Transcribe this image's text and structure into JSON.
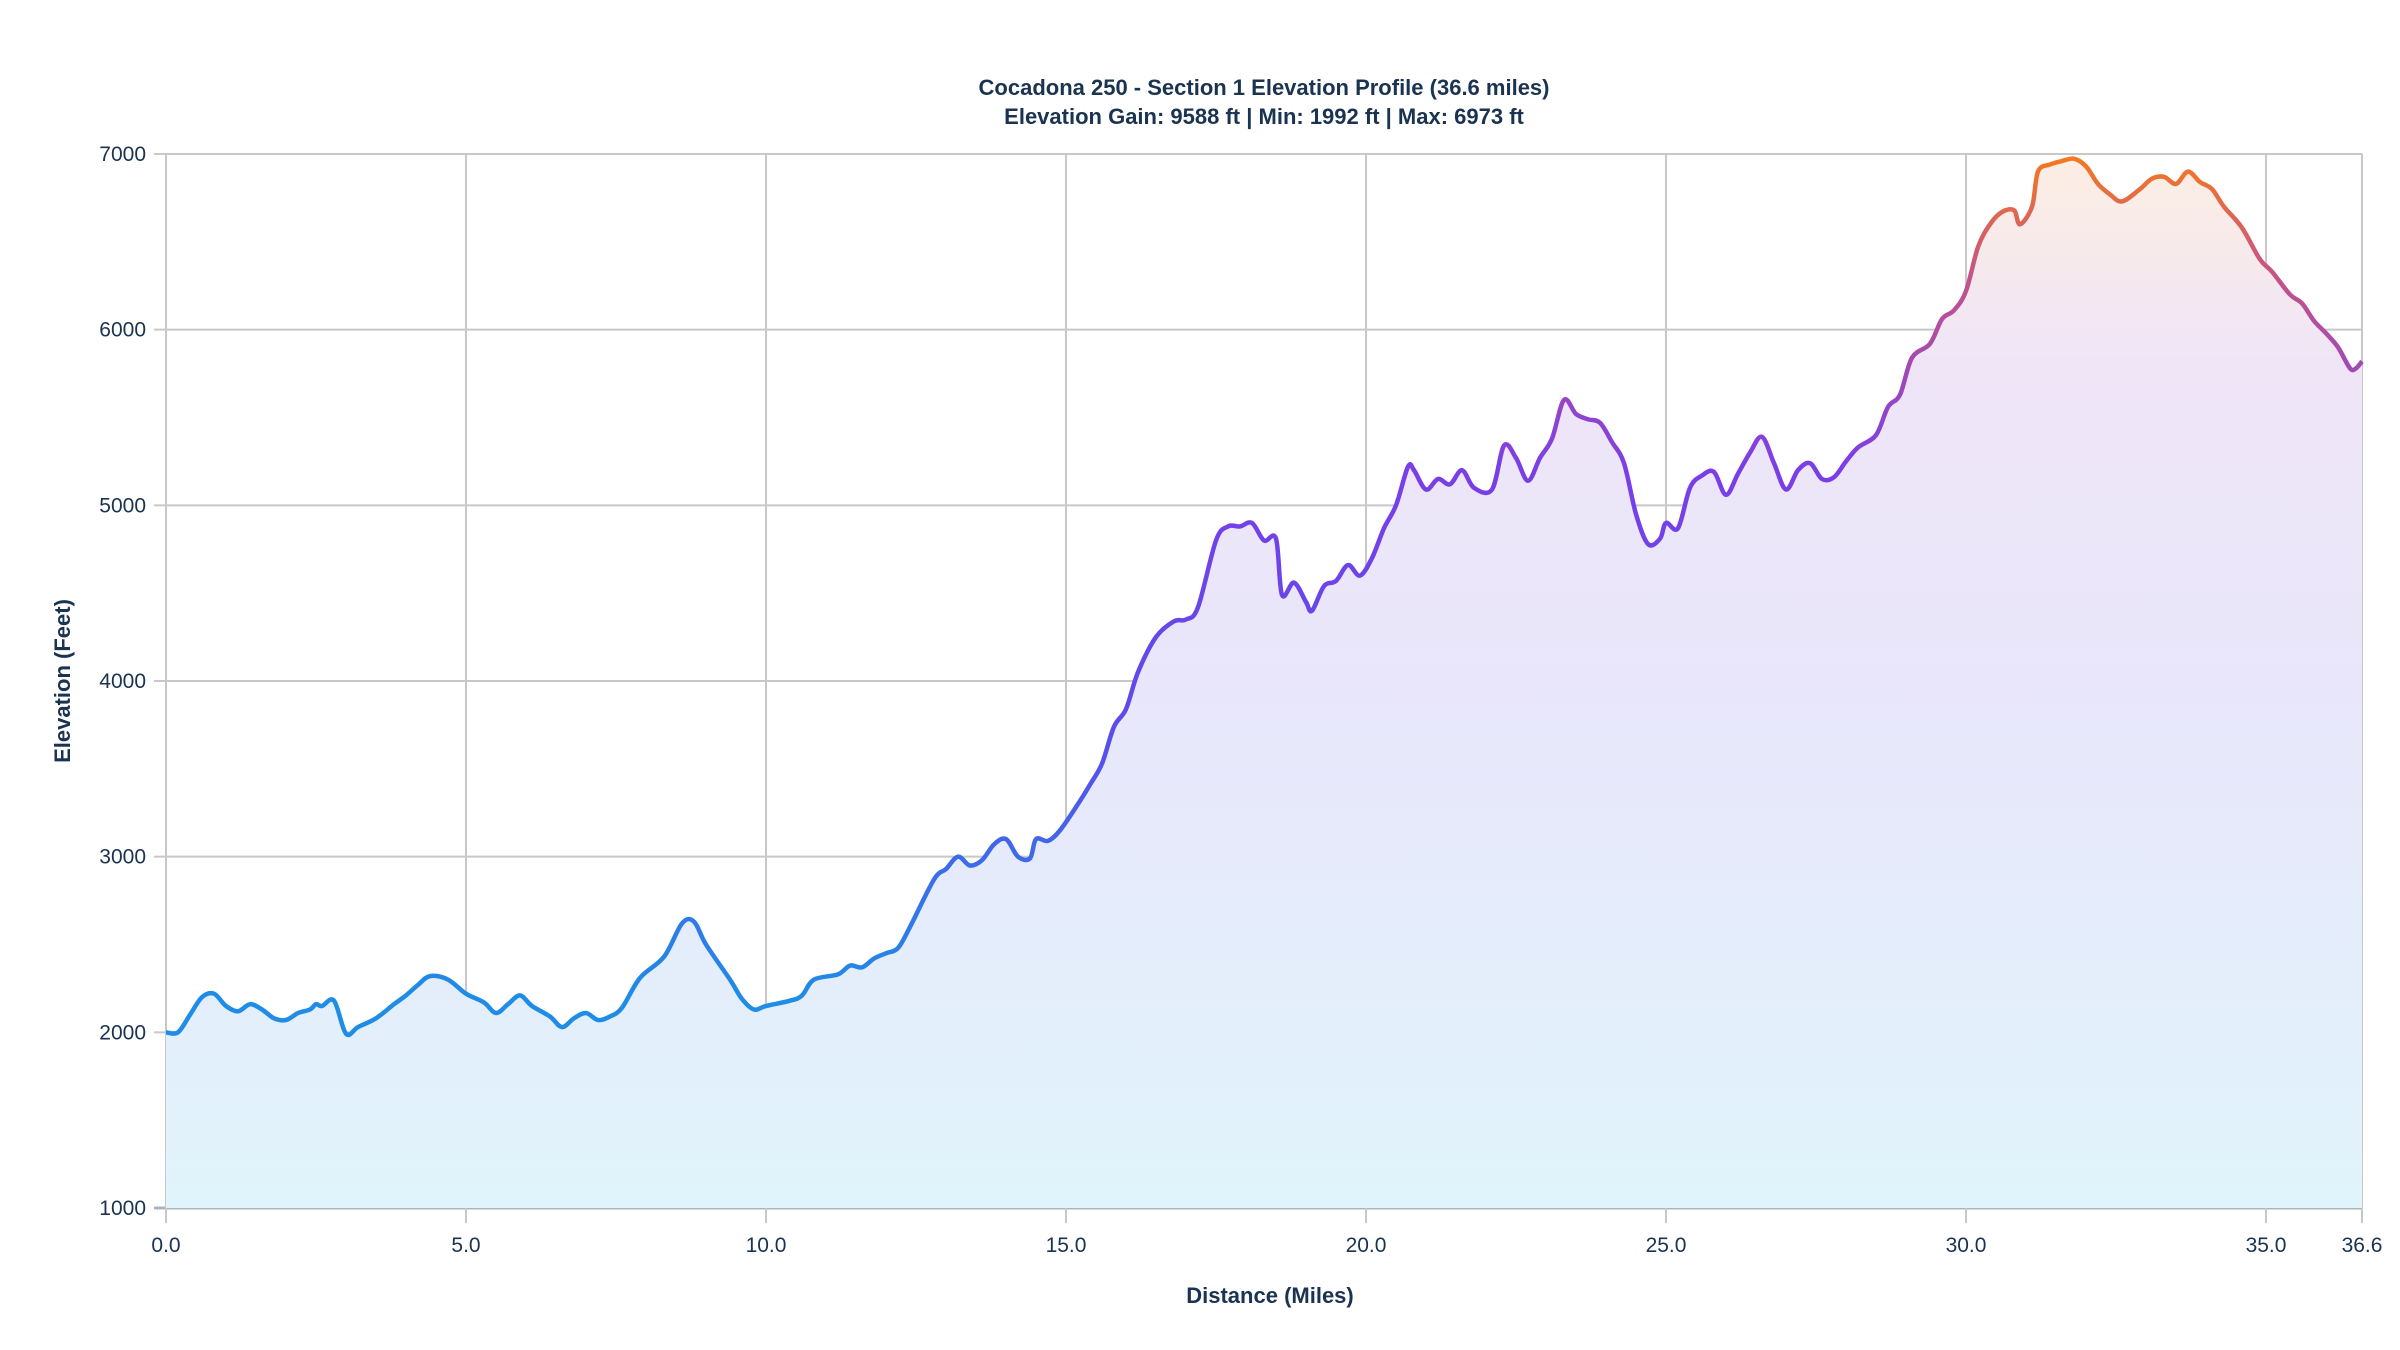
{
  "chart_data": {
    "type": "area",
    "title": "Cocadona 250 - Section 1 Elevation Profile (36.6 miles)",
    "subtitle": "Elevation Gain: 9588 ft | Min: 1992 ft | Max: 6973 ft",
    "xlabel": "Distance (Miles)",
    "ylabel": "Elevation (Feet)",
    "xlim": [
      0,
      36.6
    ],
    "ylim": [
      1000,
      7000
    ],
    "xticks": [
      0,
      5,
      10,
      15,
      20,
      25,
      30,
      35,
      36.6
    ],
    "xtick_labels": [
      "0.0",
      "5.0",
      "10.0",
      "15.0",
      "20.0",
      "25.0",
      "30.0",
      "35.0",
      "36.6"
    ],
    "yticks": [
      1000,
      2000,
      3000,
      4000,
      5000,
      6000,
      7000
    ],
    "ytick_labels": [
      "1000",
      "2000",
      "3000",
      "4000",
      "5000",
      "6000",
      "7000"
    ],
    "grid": true,
    "colors": {
      "low": "#1f8ce6",
      "mid": "#7040ea",
      "high": "#f57a1f",
      "fill_low": "#e0f4fb",
      "fill_mid": "#ebe4fb",
      "fill_high": "#fdeee2",
      "grid": "#c8c8c8",
      "text": "#1a3350"
    },
    "series": [
      {
        "name": "Elevation",
        "x": [
          0,
          0.2,
          0.4,
          0.6,
          0.8,
          1.0,
          1.2,
          1.4,
          1.6,
          1.8,
          2.0,
          2.2,
          2.4,
          2.5,
          2.6,
          2.8,
          3.0,
          3.2,
          3.5,
          3.8,
          4.0,
          4.2,
          4.4,
          4.7,
          5.0,
          5.3,
          5.5,
          5.7,
          5.9,
          6.1,
          6.4,
          6.6,
          6.8,
          7.0,
          7.2,
          7.4,
          7.6,
          7.9,
          8.3,
          8.6,
          8.8,
          9.0,
          9.4,
          9.6,
          9.8,
          10.0,
          10.4,
          10.6,
          10.8,
          11.2,
          11.4,
          11.6,
          11.8,
          12.0,
          12.2,
          12.4,
          12.8,
          13.0,
          13.2,
          13.4,
          13.6,
          13.8,
          14.0,
          14.2,
          14.4,
          14.5,
          14.7,
          14.9,
          15.2,
          15.4,
          15.6,
          15.8,
          16.0,
          16.2,
          16.5,
          16.8,
          17.0,
          17.2,
          17.5,
          17.7,
          17.9,
          18.1,
          18.3,
          18.5,
          18.6,
          18.8,
          19.0,
          19.1,
          19.3,
          19.5,
          19.7,
          19.9,
          20.1,
          20.3,
          20.5,
          20.7,
          20.8,
          21.0,
          21.2,
          21.4,
          21.6,
          21.8,
          22.1,
          22.3,
          22.5,
          22.7,
          22.9,
          23.1,
          23.3,
          23.5,
          23.7,
          23.9,
          24.1,
          24.3,
          24.5,
          24.7,
          24.9,
          25.0,
          25.2,
          25.4,
          25.6,
          25.8,
          26.0,
          26.2,
          26.4,
          26.6,
          26.8,
          27.0,
          27.2,
          27.4,
          27.6,
          27.8,
          28.0,
          28.2,
          28.5,
          28.7,
          28.9,
          29.1,
          29.4,
          29.6,
          29.8,
          30.0,
          30.2,
          30.4,
          30.6,
          30.8,
          30.9,
          31.1,
          31.2,
          31.4,
          31.6,
          31.8,
          32.0,
          32.2,
          32.4,
          32.6,
          32.9,
          33.1,
          33.3,
          33.5,
          33.7,
          33.9,
          34.1,
          34.3,
          34.6,
          34.9,
          35.1,
          35.4,
          35.6,
          35.8,
          36.0,
          36.2,
          36.4,
          36.5,
          36.6
        ],
        "y": [
          2000,
          2000,
          2100,
          2200,
          2220,
          2150,
          2120,
          2160,
          2130,
          2080,
          2070,
          2110,
          2130,
          2160,
          2150,
          2180,
          1992,
          2030,
          2080,
          2160,
          2210,
          2270,
          2320,
          2300,
          2220,
          2170,
          2110,
          2160,
          2210,
          2150,
          2090,
          2030,
          2080,
          2110,
          2070,
          2090,
          2140,
          2310,
          2430,
          2620,
          2630,
          2500,
          2300,
          2190,
          2130,
          2150,
          2180,
          2210,
          2300,
          2330,
          2380,
          2370,
          2420,
          2450,
          2480,
          2600,
          2870,
          2930,
          3000,
          2950,
          2980,
          3070,
          3100,
          3000,
          2990,
          3100,
          3090,
          3150,
          3300,
          3410,
          3530,
          3740,
          3840,
          4050,
          4250,
          4340,
          4350,
          4420,
          4800,
          4880,
          4880,
          4900,
          4800,
          4810,
          4490,
          4560,
          4450,
          4400,
          4540,
          4570,
          4660,
          4600,
          4700,
          4870,
          5000,
          5220,
          5200,
          5090,
          5150,
          5120,
          5200,
          5100,
          5090,
          5340,
          5270,
          5140,
          5270,
          5380,
          5600,
          5520,
          5490,
          5470,
          5360,
          5240,
          4950,
          4780,
          4810,
          4900,
          4870,
          5100,
          5170,
          5190,
          5060,
          5180,
          5300,
          5390,
          5240,
          5090,
          5200,
          5240,
          5150,
          5160,
          5250,
          5330,
          5400,
          5560,
          5630,
          5840,
          5920,
          6060,
          6110,
          6220,
          6470,
          6600,
          6670,
          6680,
          6600,
          6700,
          6900,
          6940,
          6960,
          6973,
          6930,
          6830,
          6770,
          6730,
          6800,
          6860,
          6870,
          6830,
          6900,
          6840,
          6800,
          6700,
          6580,
          6400,
          6330,
          6200,
          6150,
          6050,
          5980,
          5900,
          5780,
          5780,
          5820
        ]
      }
    ]
  }
}
